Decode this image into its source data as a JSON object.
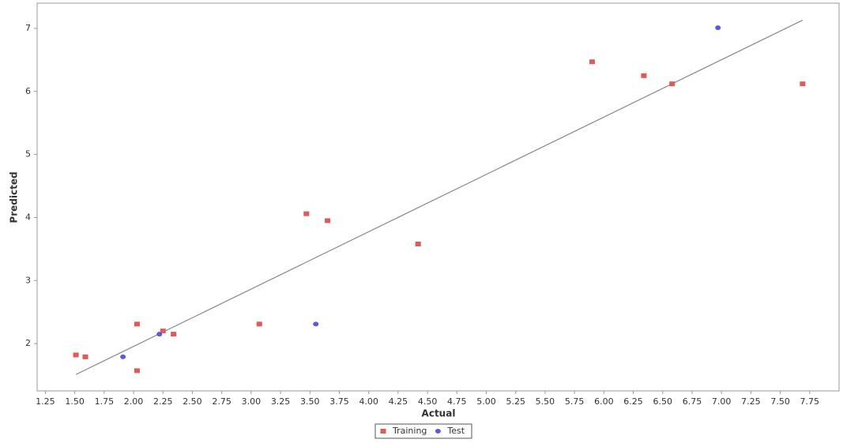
{
  "chart_data": {
    "type": "scatter",
    "xlabel": "Actual",
    "ylabel": "Predicted",
    "xlim": [
      1.18,
      8.0
    ],
    "ylim": [
      1.25,
      7.4
    ],
    "xticks": [
      {
        "value": 1.25,
        "label": "1.25"
      },
      {
        "value": 1.5,
        "label": "1.50"
      },
      {
        "value": 1.75,
        "label": "1.75"
      },
      {
        "value": 2,
        "label": "2.00"
      },
      {
        "value": 2.25,
        "label": "2.25"
      },
      {
        "value": 2.5,
        "label": "2.50"
      },
      {
        "value": 2.75,
        "label": "2.75"
      },
      {
        "value": 3,
        "label": "3.00"
      },
      {
        "value": 3.25,
        "label": "3.25"
      },
      {
        "value": 3.5,
        "label": "3.50"
      },
      {
        "value": 3.75,
        "label": "3.75"
      },
      {
        "value": 4,
        "label": "4.00"
      },
      {
        "value": 4.25,
        "label": "4.25"
      },
      {
        "value": 4.5,
        "label": "4.50"
      },
      {
        "value": 4.75,
        "label": "4.75"
      },
      {
        "value": 5,
        "label": "5.00"
      },
      {
        "value": 5.25,
        "label": "5.25"
      },
      {
        "value": 5.5,
        "label": "5.50"
      },
      {
        "value": 5.75,
        "label": "5.75"
      },
      {
        "value": 6,
        "label": "6.00"
      },
      {
        "value": 6.25,
        "label": "6.25"
      },
      {
        "value": 6.5,
        "label": "6.50"
      },
      {
        "value": 6.75,
        "label": "6.75"
      },
      {
        "value": 7,
        "label": "7.00"
      },
      {
        "value": 7.25,
        "label": "7.25"
      },
      {
        "value": 7.5,
        "label": "7.50"
      },
      {
        "value": 7.75,
        "label": "7.75"
      }
    ],
    "yticks": [
      2,
      3,
      4,
      5,
      6,
      7
    ],
    "series": [
      {
        "name": "Training",
        "color": "#e05a5a",
        "marker": "square",
        "x": [
          1.51,
          1.59,
          2.03,
          2.03,
          2.25,
          2.34,
          3.07,
          3.47,
          3.65,
          4.42,
          5.9,
          6.34,
          6.58,
          7.69
        ],
        "values": [
          1.82,
          1.79,
          2.31,
          1.57,
          2.2,
          2.15,
          2.31,
          4.06,
          3.95,
          3.58,
          6.47,
          6.25,
          6.12,
          6.12
        ]
      },
      {
        "name": "Test",
        "color": "#5a5ae0",
        "marker": "circle",
        "x": [
          1.91,
          2.22,
          3.55,
          6.97
        ],
        "values": [
          1.79,
          2.15,
          2.31,
          7.01
        ]
      }
    ],
    "trend_line": {
      "color": "#888888",
      "x": [
        1.51,
        7.69
      ],
      "y": [
        1.51,
        7.13
      ]
    },
    "legend": "bottom"
  }
}
